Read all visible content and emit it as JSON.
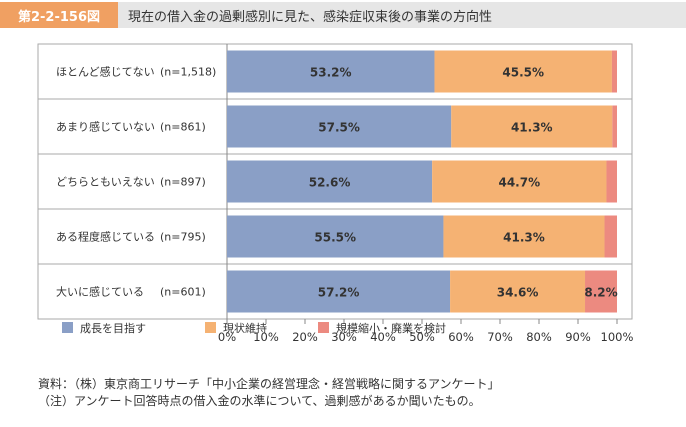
{
  "header": {
    "figure_label": "第2-2-156図",
    "title": "現在の借入金の過剰感別に見た、感染症収束後の事業の方向性"
  },
  "colors": {
    "growth": "#8a9fc6",
    "maintain": "#f5b273",
    "shrink": "#ec8a80"
  },
  "chart_data": {
    "type": "bar",
    "orientation": "horizontal",
    "stacked": true,
    "percent": true,
    "title": "現在の借入金の過剰感別に見た、感染症収束後の事業の方向性",
    "categories": [
      "ほとんど感じてない",
      "あまり感じていない",
      "どちらともいえない",
      "ある程度感じている",
      "大いに感じている"
    ],
    "counts": [
      "(n=1,518)",
      "(n=861)",
      "(n=897)",
      "(n=795)",
      "(n=601)"
    ],
    "series": [
      {
        "name": "成長を目指す",
        "values": [
          53.2,
          57.5,
          52.6,
          55.5,
          57.2
        ],
        "labels": [
          "53.2%",
          "57.5%",
          "52.6%",
          "55.5%",
          "57.2%"
        ]
      },
      {
        "name": "現状維持",
        "values": [
          45.5,
          41.3,
          44.7,
          41.3,
          34.6
        ],
        "labels": [
          "45.5%",
          "41.3%",
          "44.7%",
          "41.3%",
          "34.6%"
        ]
      },
      {
        "name": "規模縮小・廃業を検討",
        "values": [
          1.3,
          1.2,
          2.7,
          3.2,
          8.2
        ],
        "labels": [
          "",
          "",
          "",
          "",
          "8.2%"
        ]
      }
    ],
    "xlim": [
      0,
      100
    ],
    "xticks": [
      "0%",
      "10%",
      "20%",
      "30%",
      "40%",
      "50%",
      "60%",
      "70%",
      "80%",
      "90%",
      "100%"
    ],
    "legend_position": "bottom",
    "grid": false
  },
  "notes": {
    "source": "資料：（株）東京商工リサーチ「中小企業の経営理念・経営戦略に関するアンケート」",
    "note": "（注）アンケート回答時点の借入金の水準について、過剰感があるか聞いたもの。"
  }
}
